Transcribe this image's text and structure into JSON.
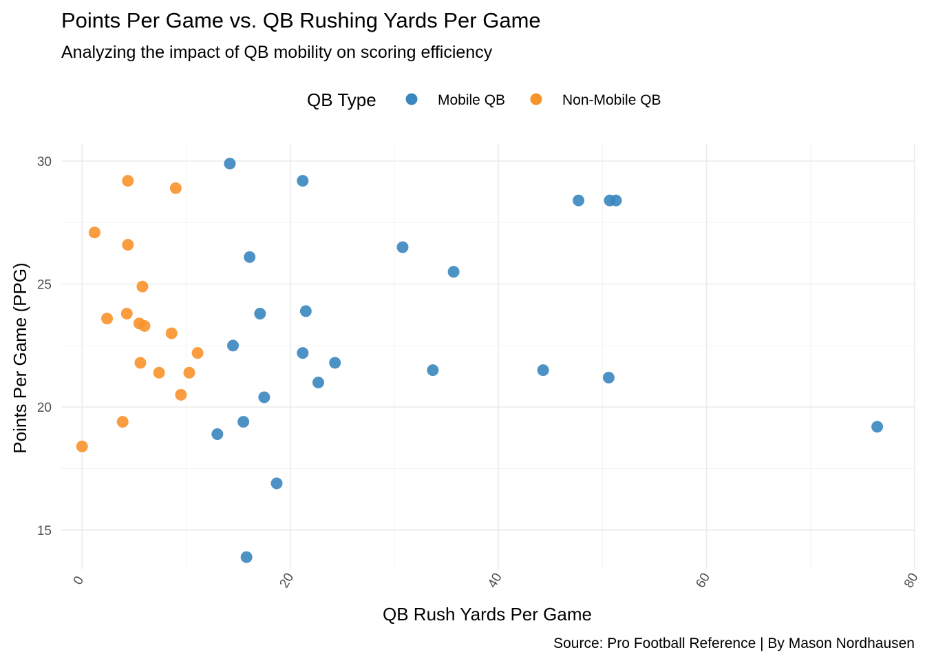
{
  "chart_data": {
    "type": "scatter",
    "title": "Points Per Game vs. QB Rushing Yards Per Game",
    "subtitle": "Analyzing the impact of QB mobility on scoring efficiency",
    "xlabel": "QB Rush Yards Per Game",
    "ylabel": "Points Per Game (PPG)",
    "caption": "Source: Pro Football Reference | By Mason Nordhausen",
    "legend_title": "QB Type",
    "legend_position": "top",
    "grid": true,
    "xlim": [
      -2,
      80
    ],
    "ylim": [
      13.4,
      30.7
    ],
    "x_ticks": [
      "0",
      "20",
      "40",
      "60",
      "80"
    ],
    "y_ticks": [
      "15",
      "20",
      "25",
      "30"
    ],
    "series": [
      {
        "name": "Mobile QB",
        "color": "#3a86bf",
        "points": [
          {
            "x": 14.2,
            "y": 29.9
          },
          {
            "x": 21.2,
            "y": 29.2
          },
          {
            "x": 47.7,
            "y": 28.4
          },
          {
            "x": 50.7,
            "y": 28.4
          },
          {
            "x": 51.3,
            "y": 28.4
          },
          {
            "x": 16.1,
            "y": 26.1
          },
          {
            "x": 30.8,
            "y": 26.5
          },
          {
            "x": 35.7,
            "y": 25.5
          },
          {
            "x": 17.1,
            "y": 23.8
          },
          {
            "x": 21.5,
            "y": 23.9
          },
          {
            "x": 14.5,
            "y": 22.5
          },
          {
            "x": 21.2,
            "y": 22.2
          },
          {
            "x": 24.3,
            "y": 21.8
          },
          {
            "x": 33.7,
            "y": 21.5
          },
          {
            "x": 44.3,
            "y": 21.5
          },
          {
            "x": 50.6,
            "y": 21.2
          },
          {
            "x": 22.7,
            "y": 21.0
          },
          {
            "x": 17.5,
            "y": 20.4
          },
          {
            "x": 15.5,
            "y": 19.4
          },
          {
            "x": 13.0,
            "y": 18.9
          },
          {
            "x": 76.4,
            "y": 19.2
          },
          {
            "x": 18.7,
            "y": 16.9
          },
          {
            "x": 15.8,
            "y": 13.9
          }
        ]
      },
      {
        "name": "Non-Mobile QB",
        "color": "#f8922b",
        "points": [
          {
            "x": 4.4,
            "y": 29.2
          },
          {
            "x": 9.0,
            "y": 28.9
          },
          {
            "x": 1.2,
            "y": 27.1
          },
          {
            "x": 4.4,
            "y": 26.6
          },
          {
            "x": 5.8,
            "y": 24.9
          },
          {
            "x": 2.4,
            "y": 23.6
          },
          {
            "x": 4.3,
            "y": 23.8
          },
          {
            "x": 5.5,
            "y": 23.4
          },
          {
            "x": 6.0,
            "y": 23.3
          },
          {
            "x": 8.6,
            "y": 23.0
          },
          {
            "x": 11.1,
            "y": 22.2
          },
          {
            "x": 5.6,
            "y": 21.8
          },
          {
            "x": 7.4,
            "y": 21.4
          },
          {
            "x": 10.3,
            "y": 21.4
          },
          {
            "x": 9.5,
            "y": 20.5
          },
          {
            "x": 3.9,
            "y": 19.4
          },
          {
            "x": 0.0,
            "y": 18.4
          }
        ]
      }
    ]
  }
}
